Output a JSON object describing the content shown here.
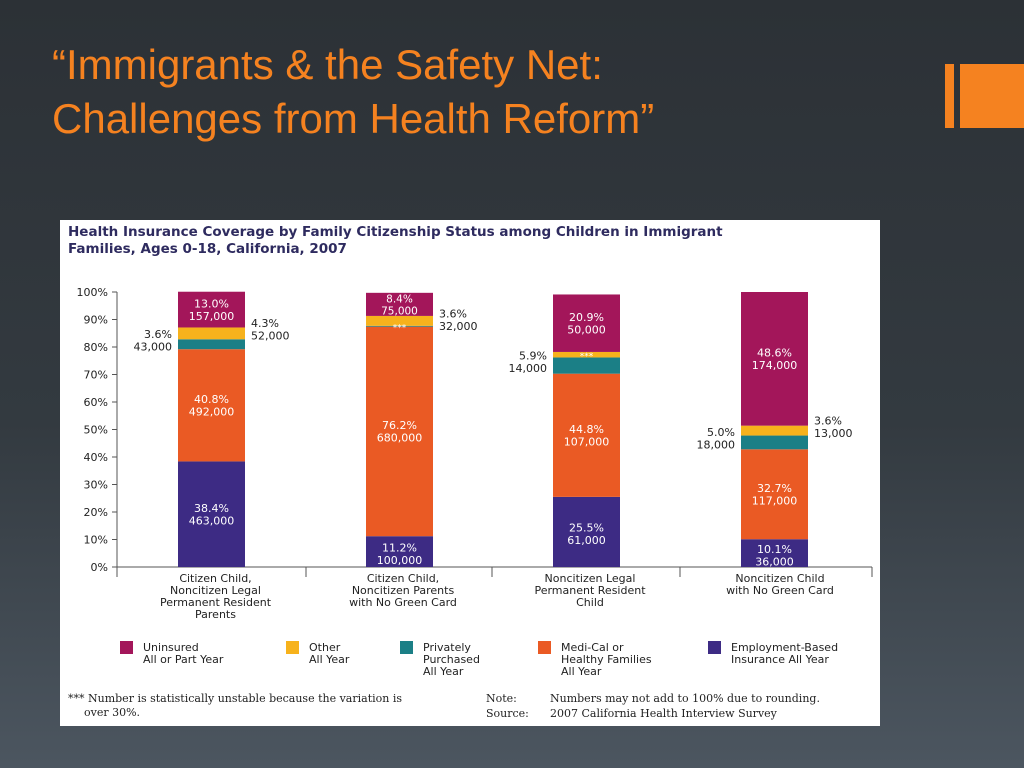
{
  "slide": {
    "title_line1": "“Immigrants & the Safety Net:",
    "title_line2": "Challenges from Health Reform”",
    "accent_color": "#f58220"
  },
  "chart_data": {
    "type": "bar",
    "stacked": true,
    "title_line1": "Health Insurance Coverage by Family Citizenship Status among Children in Immigrant",
    "title_line2": "Families, Ages 0-18, California, 2007",
    "y_ticks": [
      "100%",
      "90%",
      "80%",
      "70%",
      "60%",
      "50%",
      "40%",
      "30%",
      "20%",
      "10%",
      "0%"
    ],
    "ylim": [
      0,
      100
    ],
    "categories": [
      [
        "Citizen Child,",
        "Noncitizen Legal",
        "Permanent Resident",
        "Parents"
      ],
      [
        "Citizen Child,",
        "Noncitizen Parents",
        "with No Green Card"
      ],
      [
        "Noncitizen Legal",
        "Permanent Resident",
        "Child"
      ],
      [
        "Noncitizen Child",
        "with No Green Card"
      ]
    ],
    "series": [
      {
        "name_lines": [
          "Employment-Based",
          "Insurance All Year"
        ],
        "color": "#3d2b84",
        "values": [
          38.4,
          11.2,
          25.5,
          10.1
        ],
        "labels": [
          [
            "38.4%",
            "463,000"
          ],
          [
            "11.2%",
            "100,000"
          ],
          [
            "25.5%",
            "61,000"
          ],
          [
            "10.1%",
            "36,000"
          ]
        ]
      },
      {
        "name_lines": [
          "Medi-Cal or",
          "Healthy Families",
          "All Year"
        ],
        "color": "#ea5a24",
        "values": [
          40.8,
          76.2,
          44.8,
          32.7
        ],
        "labels": [
          [
            "40.8%",
            "492,000"
          ],
          [
            "76.2%",
            "680,000"
          ],
          [
            "44.8%",
            "107,000"
          ],
          [
            "32.7%",
            "117,000"
          ]
        ]
      },
      {
        "name_lines": [
          "Privately",
          "Purchased",
          "All Year"
        ],
        "color": "#1b7f86",
        "values": [
          3.6,
          0.3,
          5.9,
          5.0
        ],
        "labels": [
          [
            "3.6%",
            "43,000"
          ],
          [
            "***"
          ],
          [
            "5.9%",
            "14,000"
          ],
          [
            "5.0%",
            "18,000"
          ]
        ]
      },
      {
        "name_lines": [
          "Other",
          "All Year"
        ],
        "color": "#f7b21c",
        "values": [
          4.3,
          3.6,
          2.0,
          3.6
        ],
        "labels": [
          [
            "4.3%",
            "52,000"
          ],
          [
            "3.6%",
            "32,000"
          ],
          [
            "***"
          ],
          [
            "3.6%",
            "13,000"
          ]
        ]
      },
      {
        "name_lines": [
          "Uninsured",
          "All or Part Year"
        ],
        "color": "#a3165a",
        "values": [
          13.0,
          8.4,
          20.9,
          48.6
        ],
        "labels": [
          [
            "13.0%",
            "157,000"
          ],
          [
            "8.4%",
            "75,000"
          ],
          [
            "20.9%",
            "50,000"
          ],
          [
            "48.6%",
            "174,000"
          ]
        ]
      }
    ],
    "legend_order": [
      4,
      3,
      2,
      1,
      0
    ],
    "footnote_line1": "*** Number is statistically unstable because the variation is",
    "footnote_line2": "over 30%.",
    "note_label": "Note:",
    "note_text": "Numbers may not add to 100% due to rounding.",
    "source_label": "Source:",
    "source_text": "2007 California Health Interview Survey"
  }
}
